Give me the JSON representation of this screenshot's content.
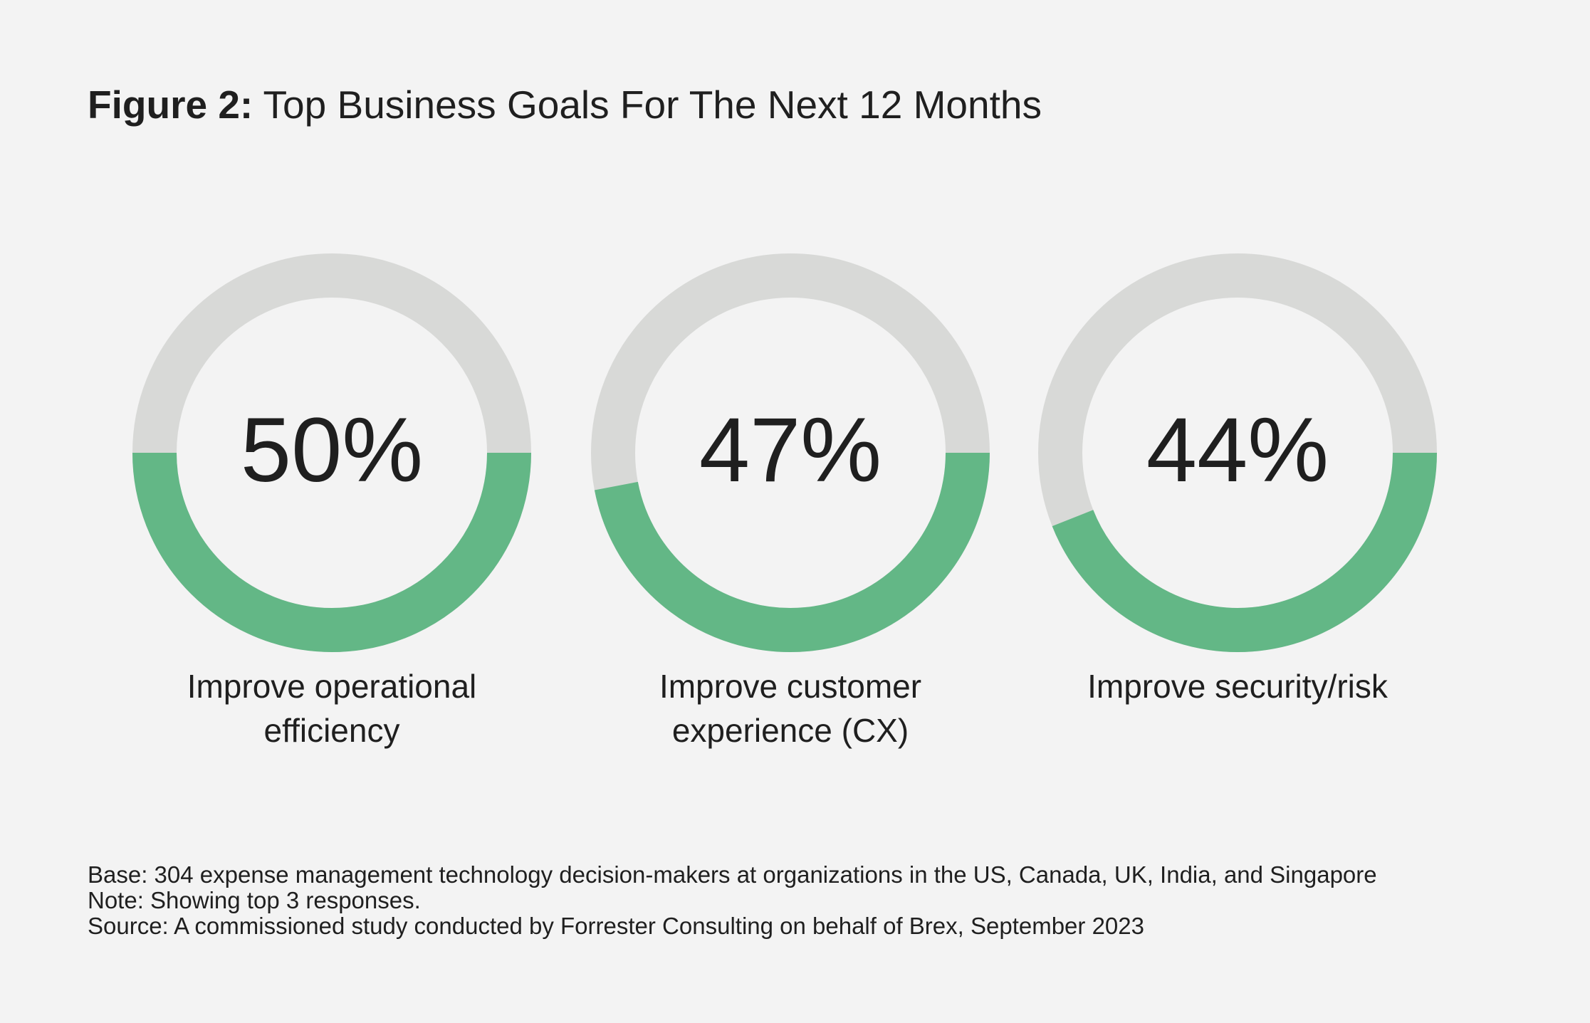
{
  "title": {
    "prefix": "Figure 2:",
    "text": "Top Business Goals For The Next 12 Months"
  },
  "chart_data": {
    "type": "donut",
    "title": "Top Business Goals For The Next 12 Months",
    "unit": "%",
    "items": [
      {
        "label_lines": [
          "Improve operational",
          "efficiency"
        ],
        "value": 50,
        "display": "50%"
      },
      {
        "label_lines": [
          "Improve customer",
          "experience (CX)"
        ],
        "value": 47,
        "display": "47%"
      },
      {
        "label_lines": [
          "Improve security/risk"
        ],
        "value": 44,
        "display": "44%"
      }
    ],
    "colors": {
      "value": "#63b786",
      "track": "#d8d9d7"
    }
  },
  "footnotes": {
    "base": "Base: 304 expense management technology decision-makers at organizations in the US, Canada, UK, India, and Singapore",
    "note": "Note: Showing top 3 responses.",
    "source": "Source: A commissioned study conducted by Forrester Consulting on behalf of Brex, September 2023"
  }
}
